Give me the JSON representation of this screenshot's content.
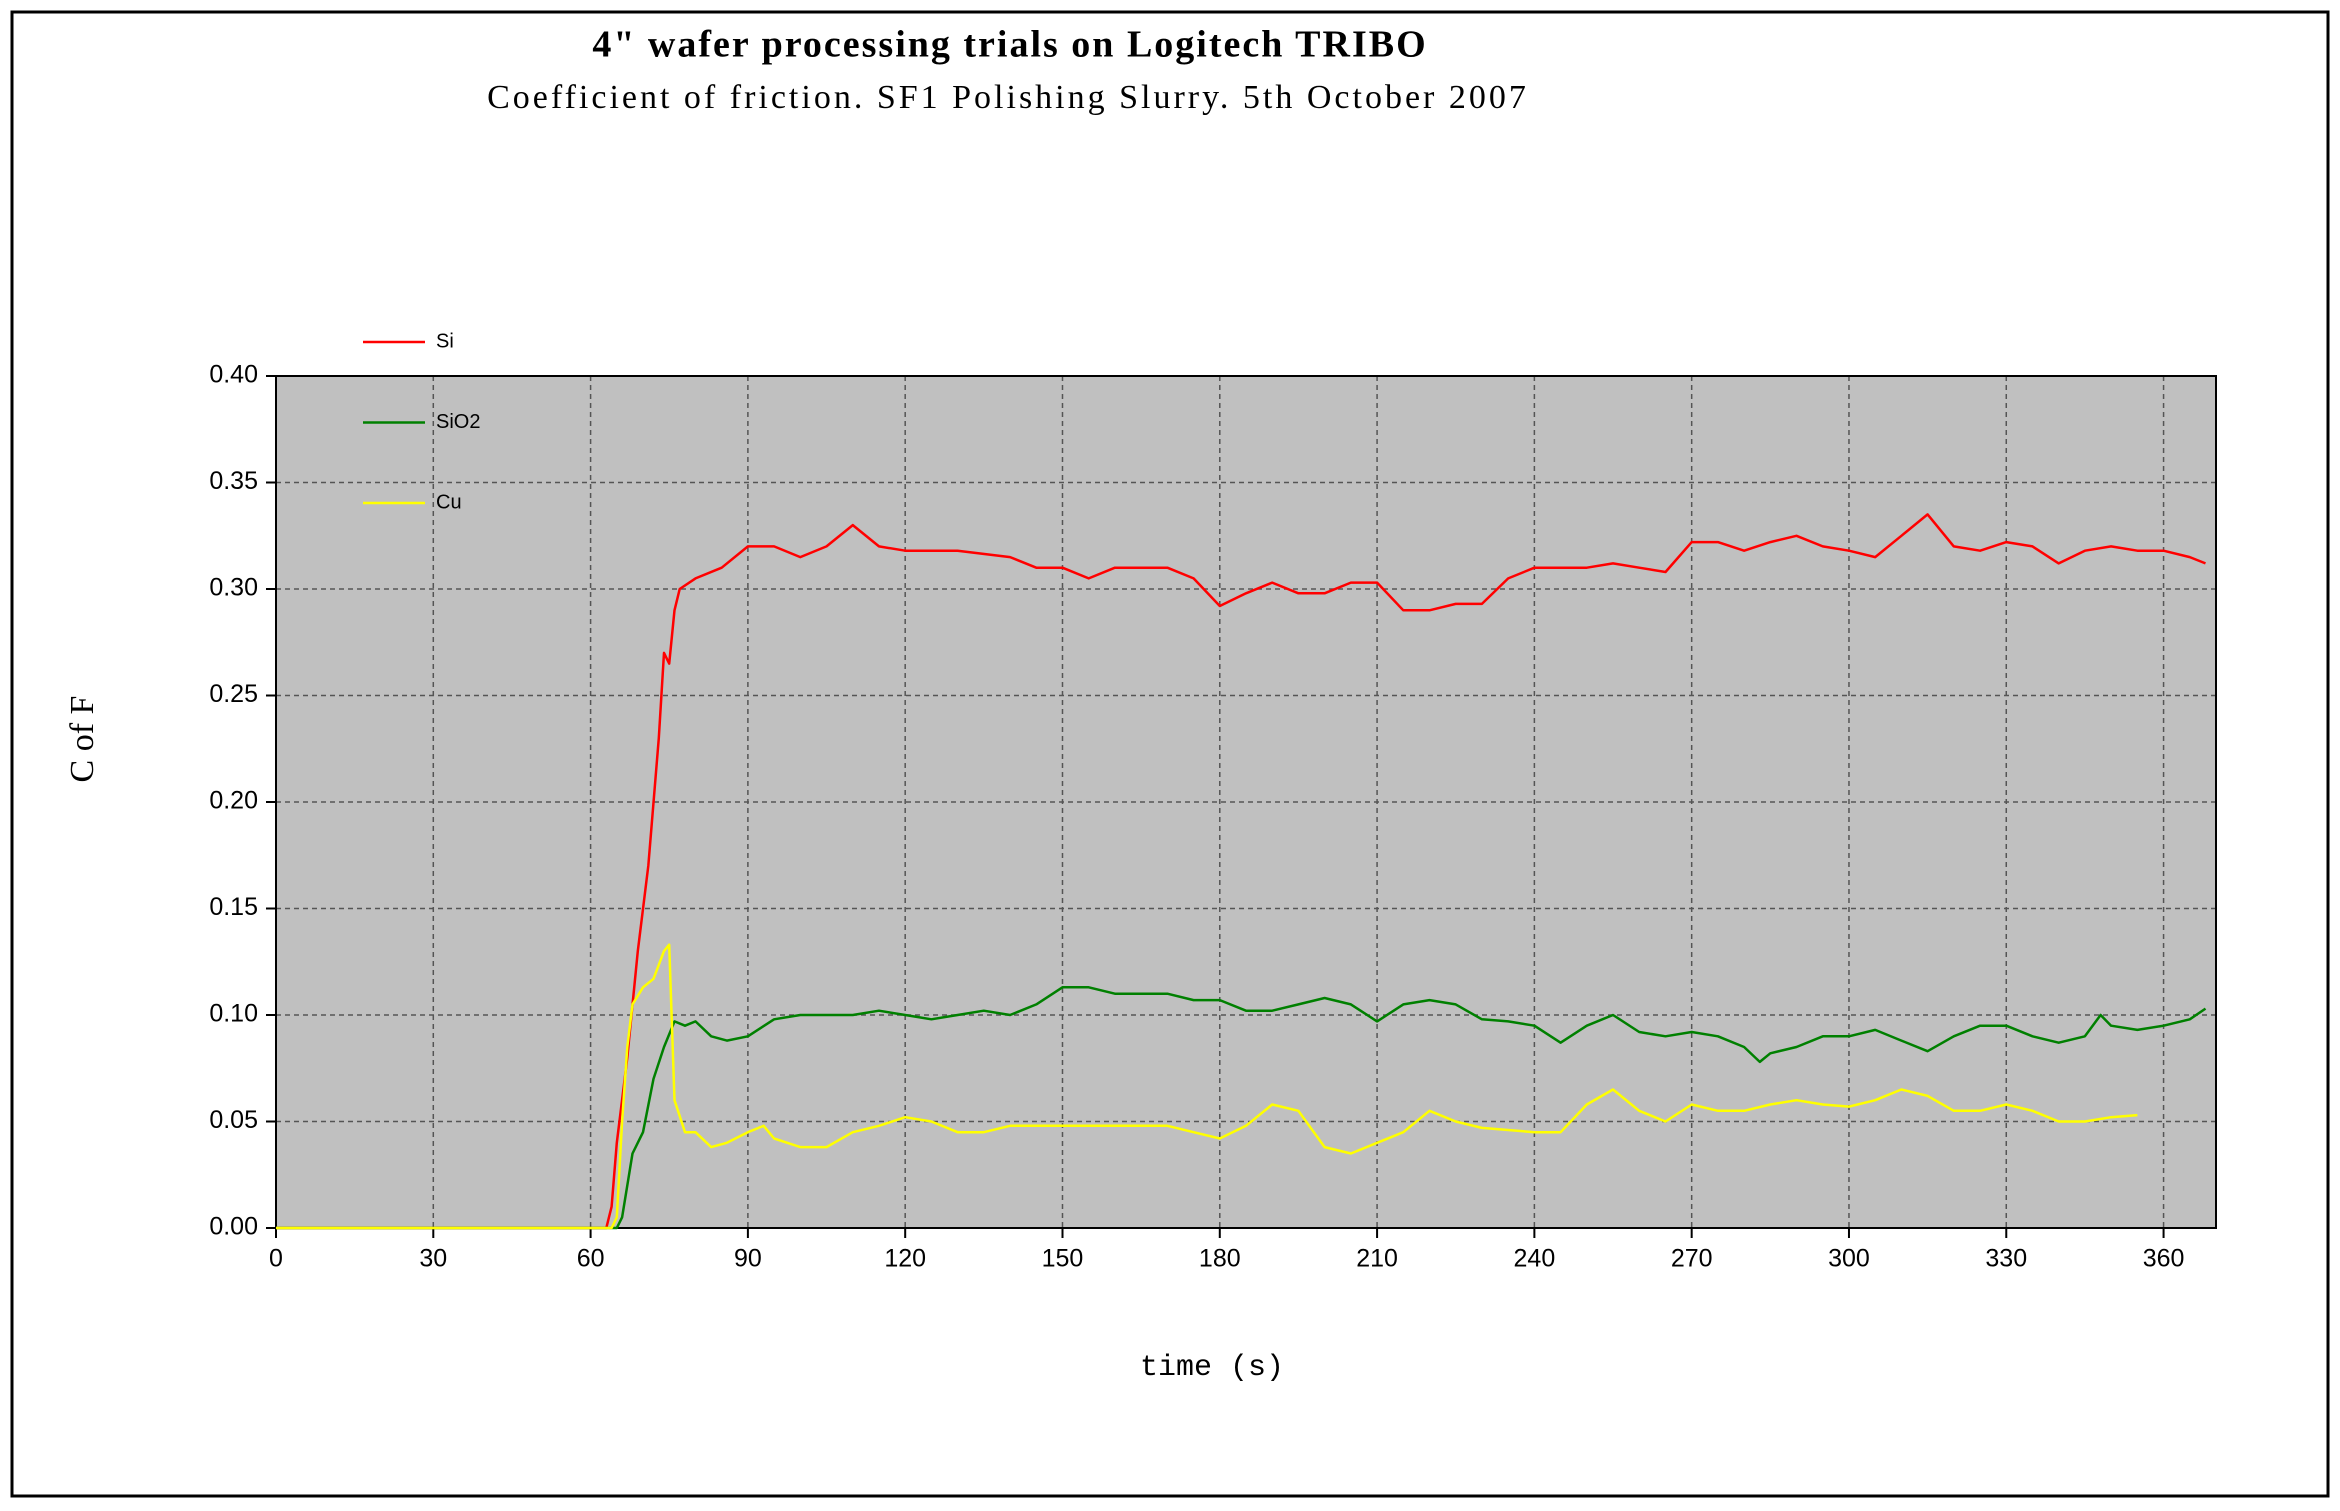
{
  "chart_data": {
    "type": "line",
    "title": "4\" wafer processing trials on Logitech TRIBO",
    "subtitle": "Coefficient  of friction. SF1 Polishing  Slurry. 5th October 2007",
    "x_label": "time (s)",
    "y_label": "C of F",
    "xlim": [
      0,
      370
    ],
    "xticks": [
      0,
      30,
      60,
      90,
      120,
      150,
      180,
      210,
      240,
      270,
      300,
      330,
      360
    ],
    "ylim": [
      0,
      0.4
    ],
    "yticks": [
      {
        "value": 0,
        "label": "0.00"
      },
      {
        "value": 0.05,
        "label": "0.05"
      },
      {
        "value": 0.1,
        "label": "0.10"
      },
      {
        "value": 0.15,
        "label": "0.15"
      },
      {
        "value": 0.2,
        "label": "0.20"
      },
      {
        "value": 0.25,
        "label": "0.25"
      },
      {
        "value": 0.3,
        "label": "0.30"
      },
      {
        "value": 0.35,
        "label": "0.35"
      },
      {
        "value": 0.4,
        "label": "0.40"
      }
    ],
    "grid": true,
    "series": [
      {
        "name": "Si",
        "color": "#ff0000",
        "x": [
          0,
          63,
          64,
          65,
          67,
          69,
          71,
          73,
          74,
          75,
          76,
          77,
          80,
          85,
          90,
          95,
          100,
          105,
          110,
          115,
          120,
          130,
          140,
          145,
          150,
          155,
          160,
          170,
          175,
          180,
          185,
          190,
          195,
          200,
          205,
          210,
          215,
          220,
          225,
          230,
          235,
          240,
          245,
          250,
          255,
          260,
          265,
          270,
          275,
          280,
          285,
          290,
          295,
          300,
          305,
          310,
          315,
          320,
          325,
          330,
          335,
          340,
          345,
          350,
          355,
          360,
          365,
          368
        ],
        "values": [
          0,
          0,
          0.01,
          0.04,
          0.08,
          0.13,
          0.17,
          0.23,
          0.27,
          0.265,
          0.29,
          0.3,
          0.305,
          0.31,
          0.32,
          0.32,
          0.315,
          0.32,
          0.33,
          0.32,
          0.318,
          0.318,
          0.315,
          0.31,
          0.31,
          0.305,
          0.31,
          0.31,
          0.305,
          0.292,
          0.298,
          0.303,
          0.298,
          0.298,
          0.303,
          0.303,
          0.29,
          0.29,
          0.293,
          0.293,
          0.305,
          0.31,
          0.31,
          0.31,
          0.312,
          0.31,
          0.308,
          0.322,
          0.322,
          0.318,
          0.322,
          0.325,
          0.32,
          0.318,
          0.315,
          0.325,
          0.335,
          0.32,
          0.318,
          0.322,
          0.32,
          0.312,
          0.318,
          0.32,
          0.318,
          0.318,
          0.315,
          0.312
        ]
      },
      {
        "name": "SiO2",
        "color": "#008000",
        "x": [
          0,
          65,
          66,
          67,
          68,
          70,
          72,
          74,
          76,
          78,
          80,
          83,
          86,
          90,
          95,
          100,
          105,
          110,
          115,
          120,
          125,
          130,
          135,
          140,
          145,
          150,
          155,
          160,
          170,
          175,
          180,
          185,
          190,
          195,
          200,
          205,
          210,
          215,
          220,
          225,
          230,
          235,
          240,
          245,
          250,
          255,
          260,
          265,
          270,
          275,
          280,
          283,
          285,
          290,
          295,
          300,
          305,
          310,
          315,
          320,
          325,
          330,
          335,
          340,
          345,
          348,
          350,
          355,
          360,
          365,
          368
        ],
        "values": [
          0,
          0,
          0.005,
          0.02,
          0.035,
          0.045,
          0.07,
          0.085,
          0.097,
          0.095,
          0.097,
          0.09,
          0.088,
          0.09,
          0.098,
          0.1,
          0.1,
          0.1,
          0.102,
          0.1,
          0.098,
          0.1,
          0.102,
          0.1,
          0.105,
          0.113,
          0.113,
          0.11,
          0.11,
          0.107,
          0.107,
          0.102,
          0.102,
          0.105,
          0.108,
          0.105,
          0.097,
          0.105,
          0.107,
          0.105,
          0.098,
          0.097,
          0.095,
          0.087,
          0.095,
          0.1,
          0.092,
          0.09,
          0.092,
          0.09,
          0.085,
          0.078,
          0.082,
          0.085,
          0.09,
          0.09,
          0.093,
          0.088,
          0.083,
          0.09,
          0.095,
          0.095,
          0.09,
          0.087,
          0.09,
          0.1,
          0.095,
          0.093,
          0.095,
          0.098,
          0.103
        ]
      },
      {
        "name": "Cu",
        "color": "#ffff00",
        "x": [
          0,
          64,
          65,
          66,
          67,
          68,
          70,
          72,
          74,
          75,
          76,
          78,
          80,
          83,
          86,
          90,
          93,
          95,
          100,
          105,
          110,
          115,
          120,
          125,
          130,
          135,
          140,
          145,
          150,
          160,
          170,
          175,
          180,
          185,
          190,
          195,
          200,
          205,
          210,
          215,
          220,
          225,
          230,
          240,
          245,
          250,
          255,
          260,
          265,
          270,
          275,
          280,
          285,
          290,
          295,
          300,
          305,
          310,
          315,
          320,
          325,
          330,
          335,
          340,
          345,
          350,
          355
        ],
        "values": [
          0,
          0,
          0.005,
          0.05,
          0.085,
          0.105,
          0.113,
          0.117,
          0.13,
          0.133,
          0.06,
          0.045,
          0.045,
          0.038,
          0.04,
          0.045,
          0.048,
          0.042,
          0.038,
          0.038,
          0.045,
          0.048,
          0.052,
          0.05,
          0.045,
          0.045,
          0.048,
          0.048,
          0.048,
          0.048,
          0.048,
          0.045,
          0.042,
          0.048,
          0.058,
          0.055,
          0.038,
          0.035,
          0.04,
          0.045,
          0.055,
          0.05,
          0.047,
          0.045,
          0.045,
          0.058,
          0.065,
          0.055,
          0.05,
          0.058,
          0.055,
          0.055,
          0.058,
          0.06,
          0.058,
          0.057,
          0.06,
          0.065,
          0.062,
          0.055,
          0.055,
          0.058,
          0.055,
          0.05,
          0.05,
          0.052,
          0.053
        ]
      }
    ]
  }
}
